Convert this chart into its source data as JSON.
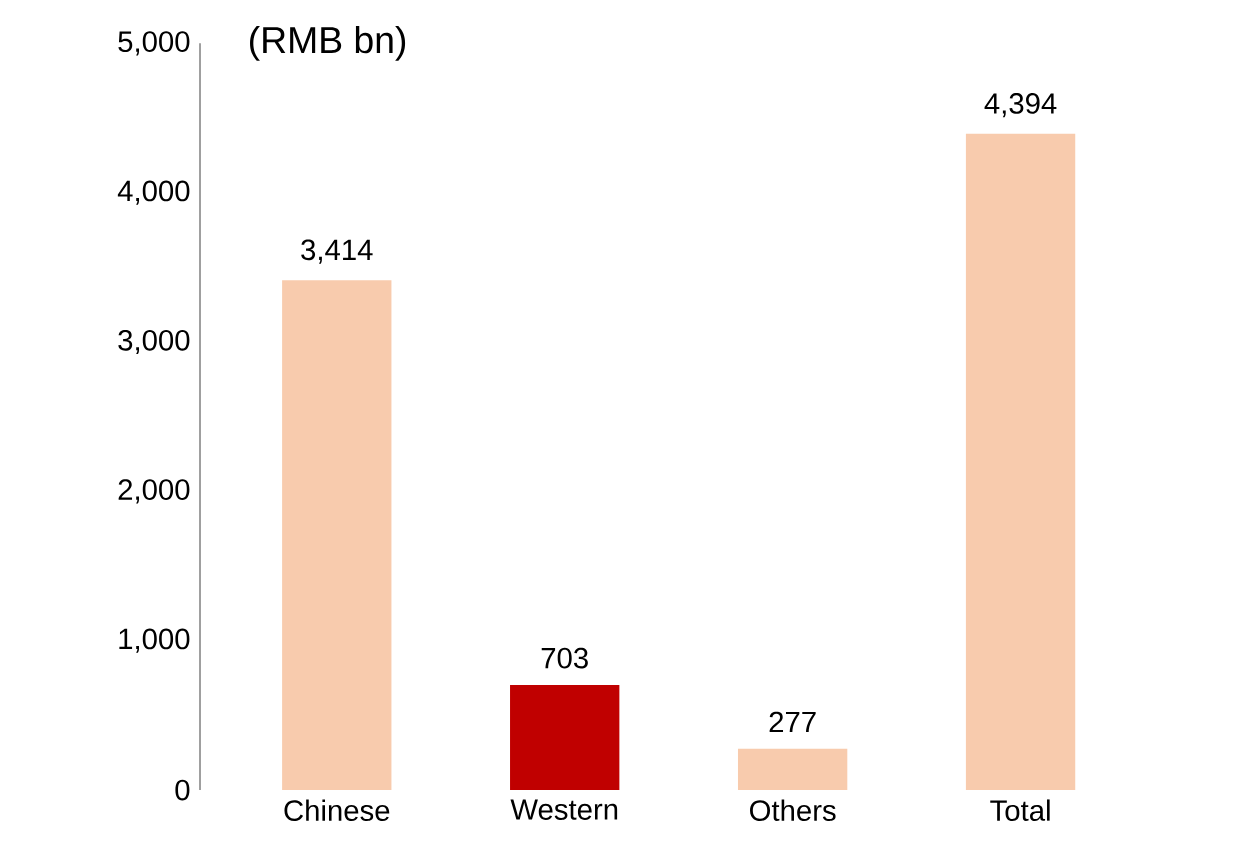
{
  "chart_data": {
    "type": "bar",
    "ylabel": "(RMB bn)",
    "categories": [
      "Chinese",
      "Western",
      "Others",
      "Total"
    ],
    "values": [
      3414,
      703,
      277,
      4394
    ],
    "colors": [
      "#f8cbad",
      "#c00000",
      "#f8cbad",
      "#f8cbad"
    ],
    "value_labels": [
      "3,414",
      "703",
      "277",
      "4,394"
    ],
    "ylim": [
      0,
      5000
    ],
    "yticks": [
      0,
      {
        "value": 1000,
        "label": "1,000"
      },
      {
        "value": 2000,
        "label": "2,000"
      },
      {
        "value": 3000,
        "label": "3,000"
      },
      {
        "value": 4000,
        "label": "4,000"
      },
      {
        "value": 5000,
        "label": "5,000"
      }
    ],
    "grid": false
  }
}
